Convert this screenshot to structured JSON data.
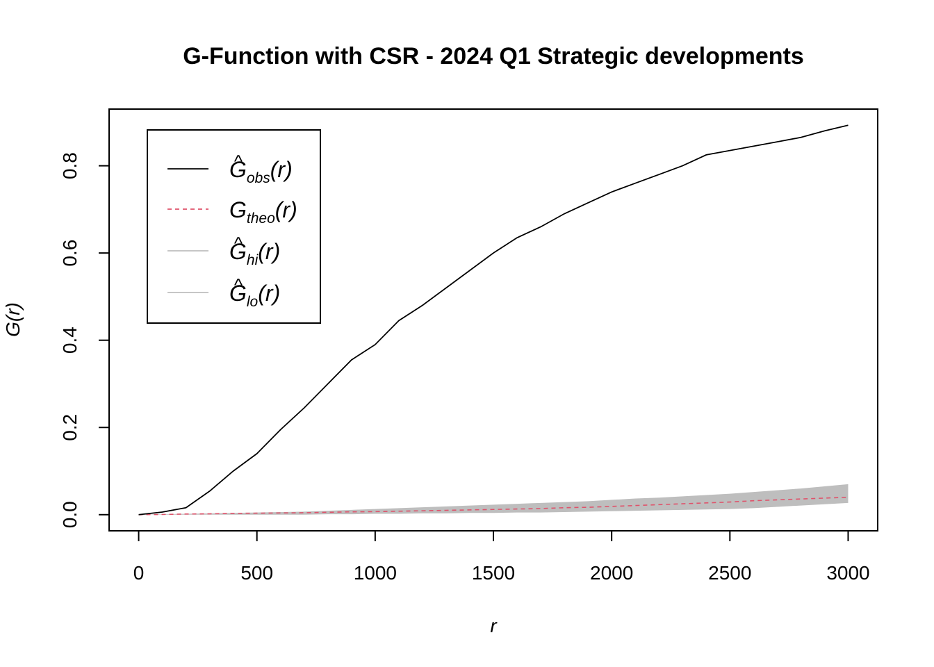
{
  "chart_data": {
    "type": "line",
    "title": "G-Function with CSR - 2024 Q1 Strategic developments",
    "xlabel": "r",
    "ylabel": "G(r)",
    "xlim": [
      -125,
      3125
    ],
    "ylim": [
      -0.037,
      0.93
    ],
    "x_ticks": [
      0,
      500,
      1000,
      1500,
      2000,
      2500,
      3000
    ],
    "y_ticks": [
      0.0,
      0.2,
      0.4,
      0.6,
      0.8
    ],
    "x_tick_labels": [
      "0",
      "500",
      "1000",
      "1500",
      "2000",
      "2500",
      "3000"
    ],
    "y_tick_labels": [
      "0.0",
      "0.2",
      "0.4",
      "0.6",
      "0.8"
    ],
    "grid": false,
    "legend_position": "top-left",
    "legend": [
      {
        "base": "G",
        "sub": "obs",
        "arg": "(r)",
        "hat": "^"
      },
      {
        "base": "G",
        "sub": "theo",
        "arg": "(r)",
        "hat": ""
      },
      {
        "base": "G",
        "sub": "hi",
        "arg": "(r)",
        "hat": "^"
      },
      {
        "base": "G",
        "sub": "lo",
        "arg": "(r)",
        "hat": "^"
      }
    ],
    "colors": {
      "obs": "#000000",
      "theo": "#DF536B",
      "envelope": "#BEBEBE"
    },
    "x": [
      0,
      100,
      200,
      300,
      400,
      500,
      600,
      700,
      800,
      900,
      1000,
      1100,
      1200,
      1300,
      1400,
      1500,
      1600,
      1700,
      1800,
      1900,
      2000,
      2100,
      2200,
      2300,
      2400,
      2500,
      2600,
      2700,
      2800,
      2900,
      3000
    ],
    "series": [
      {
        "key": "obs",
        "values": [
          0.0,
          0.006,
          0.016,
          0.054,
          0.1,
          0.14,
          0.195,
          0.245,
          0.3,
          0.355,
          0.39,
          0.445,
          0.48,
          0.52,
          0.56,
          0.6,
          0.635,
          0.66,
          0.69,
          0.715,
          0.74,
          0.76,
          0.78,
          0.8,
          0.825,
          0.835,
          0.845,
          0.855,
          0.865,
          0.88,
          0.893
        ]
      },
      {
        "key": "theo",
        "values": [
          0.0,
          0.0005,
          0.0015,
          0.002,
          0.003,
          0.0035,
          0.004,
          0.0045,
          0.0055,
          0.0065,
          0.007,
          0.008,
          0.009,
          0.01,
          0.011,
          0.012,
          0.013,
          0.014,
          0.016,
          0.017,
          0.019,
          0.021,
          0.023,
          0.025,
          0.027,
          0.029,
          0.032,
          0.034,
          0.036,
          0.038,
          0.04
        ]
      },
      {
        "key": "hi",
        "values": [
          0.0,
          0.001,
          0.002,
          0.003,
          0.004,
          0.005,
          0.006,
          0.007,
          0.009,
          0.011,
          0.013,
          0.015,
          0.017,
          0.019,
          0.021,
          0.023,
          0.025,
          0.027,
          0.029,
          0.031,
          0.034,
          0.037,
          0.039,
          0.042,
          0.045,
          0.048,
          0.052,
          0.056,
          0.06,
          0.065,
          0.07
        ]
      },
      {
        "key": "lo",
        "values": [
          0.0,
          0.0,
          0.0,
          0.0,
          0.0,
          0.0,
          0.0,
          0.0,
          0.001,
          0.001,
          0.002,
          0.002,
          0.003,
          0.003,
          0.004,
          0.004,
          0.005,
          0.005,
          0.006,
          0.007,
          0.008,
          0.009,
          0.01,
          0.011,
          0.012,
          0.013,
          0.015,
          0.018,
          0.021,
          0.024,
          0.027
        ]
      }
    ]
  }
}
